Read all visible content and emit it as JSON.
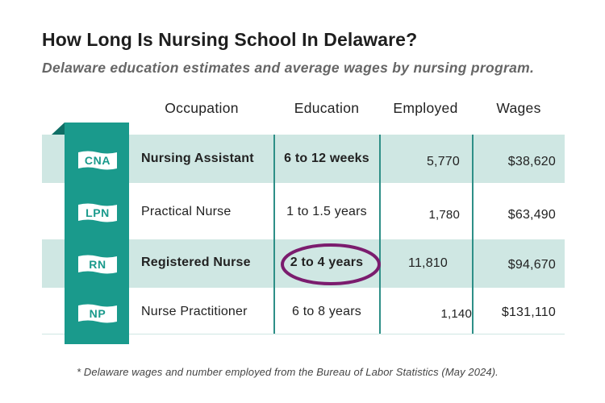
{
  "title": "How Long Is Nursing School In Delaware?",
  "subtitle": "Delaware education estimates and average wages by nursing program.",
  "headers": {
    "occupation": "Occupation",
    "education": "Education",
    "employed": "Employed",
    "wages": "Wages"
  },
  "rows": [
    {
      "badge": "CNA",
      "occupation": "Nursing Assistant",
      "education": "6 to 12 weeks",
      "employed": "5,770",
      "wages": "$38,620",
      "highlighted": true
    },
    {
      "badge": "LPN",
      "occupation": "Practical Nurse",
      "education": "1 to 1.5 years",
      "employed": "1,780",
      "wages": "$63,490",
      "highlighted": false
    },
    {
      "badge": "RN",
      "occupation": "Registered Nurse",
      "education": "2 to 4 years",
      "employed": "11,810",
      "wages": "$94,670",
      "highlighted": true,
      "circled": true
    },
    {
      "badge": "NP",
      "occupation": "Nurse Practitioner",
      "education": "6 to 8 years",
      "employed": "1,140",
      "wages": "$131,110",
      "highlighted": false
    }
  ],
  "footnote": "* Delaware wages and number employed from the Bureau of Labor Statistics (May 2024).",
  "colors": {
    "teal": "#1a9a8c",
    "row_shade": "#cfe7e3",
    "circle": "#7b1c6e"
  },
  "icons": {
    "badge": "flag-banner-icon"
  }
}
